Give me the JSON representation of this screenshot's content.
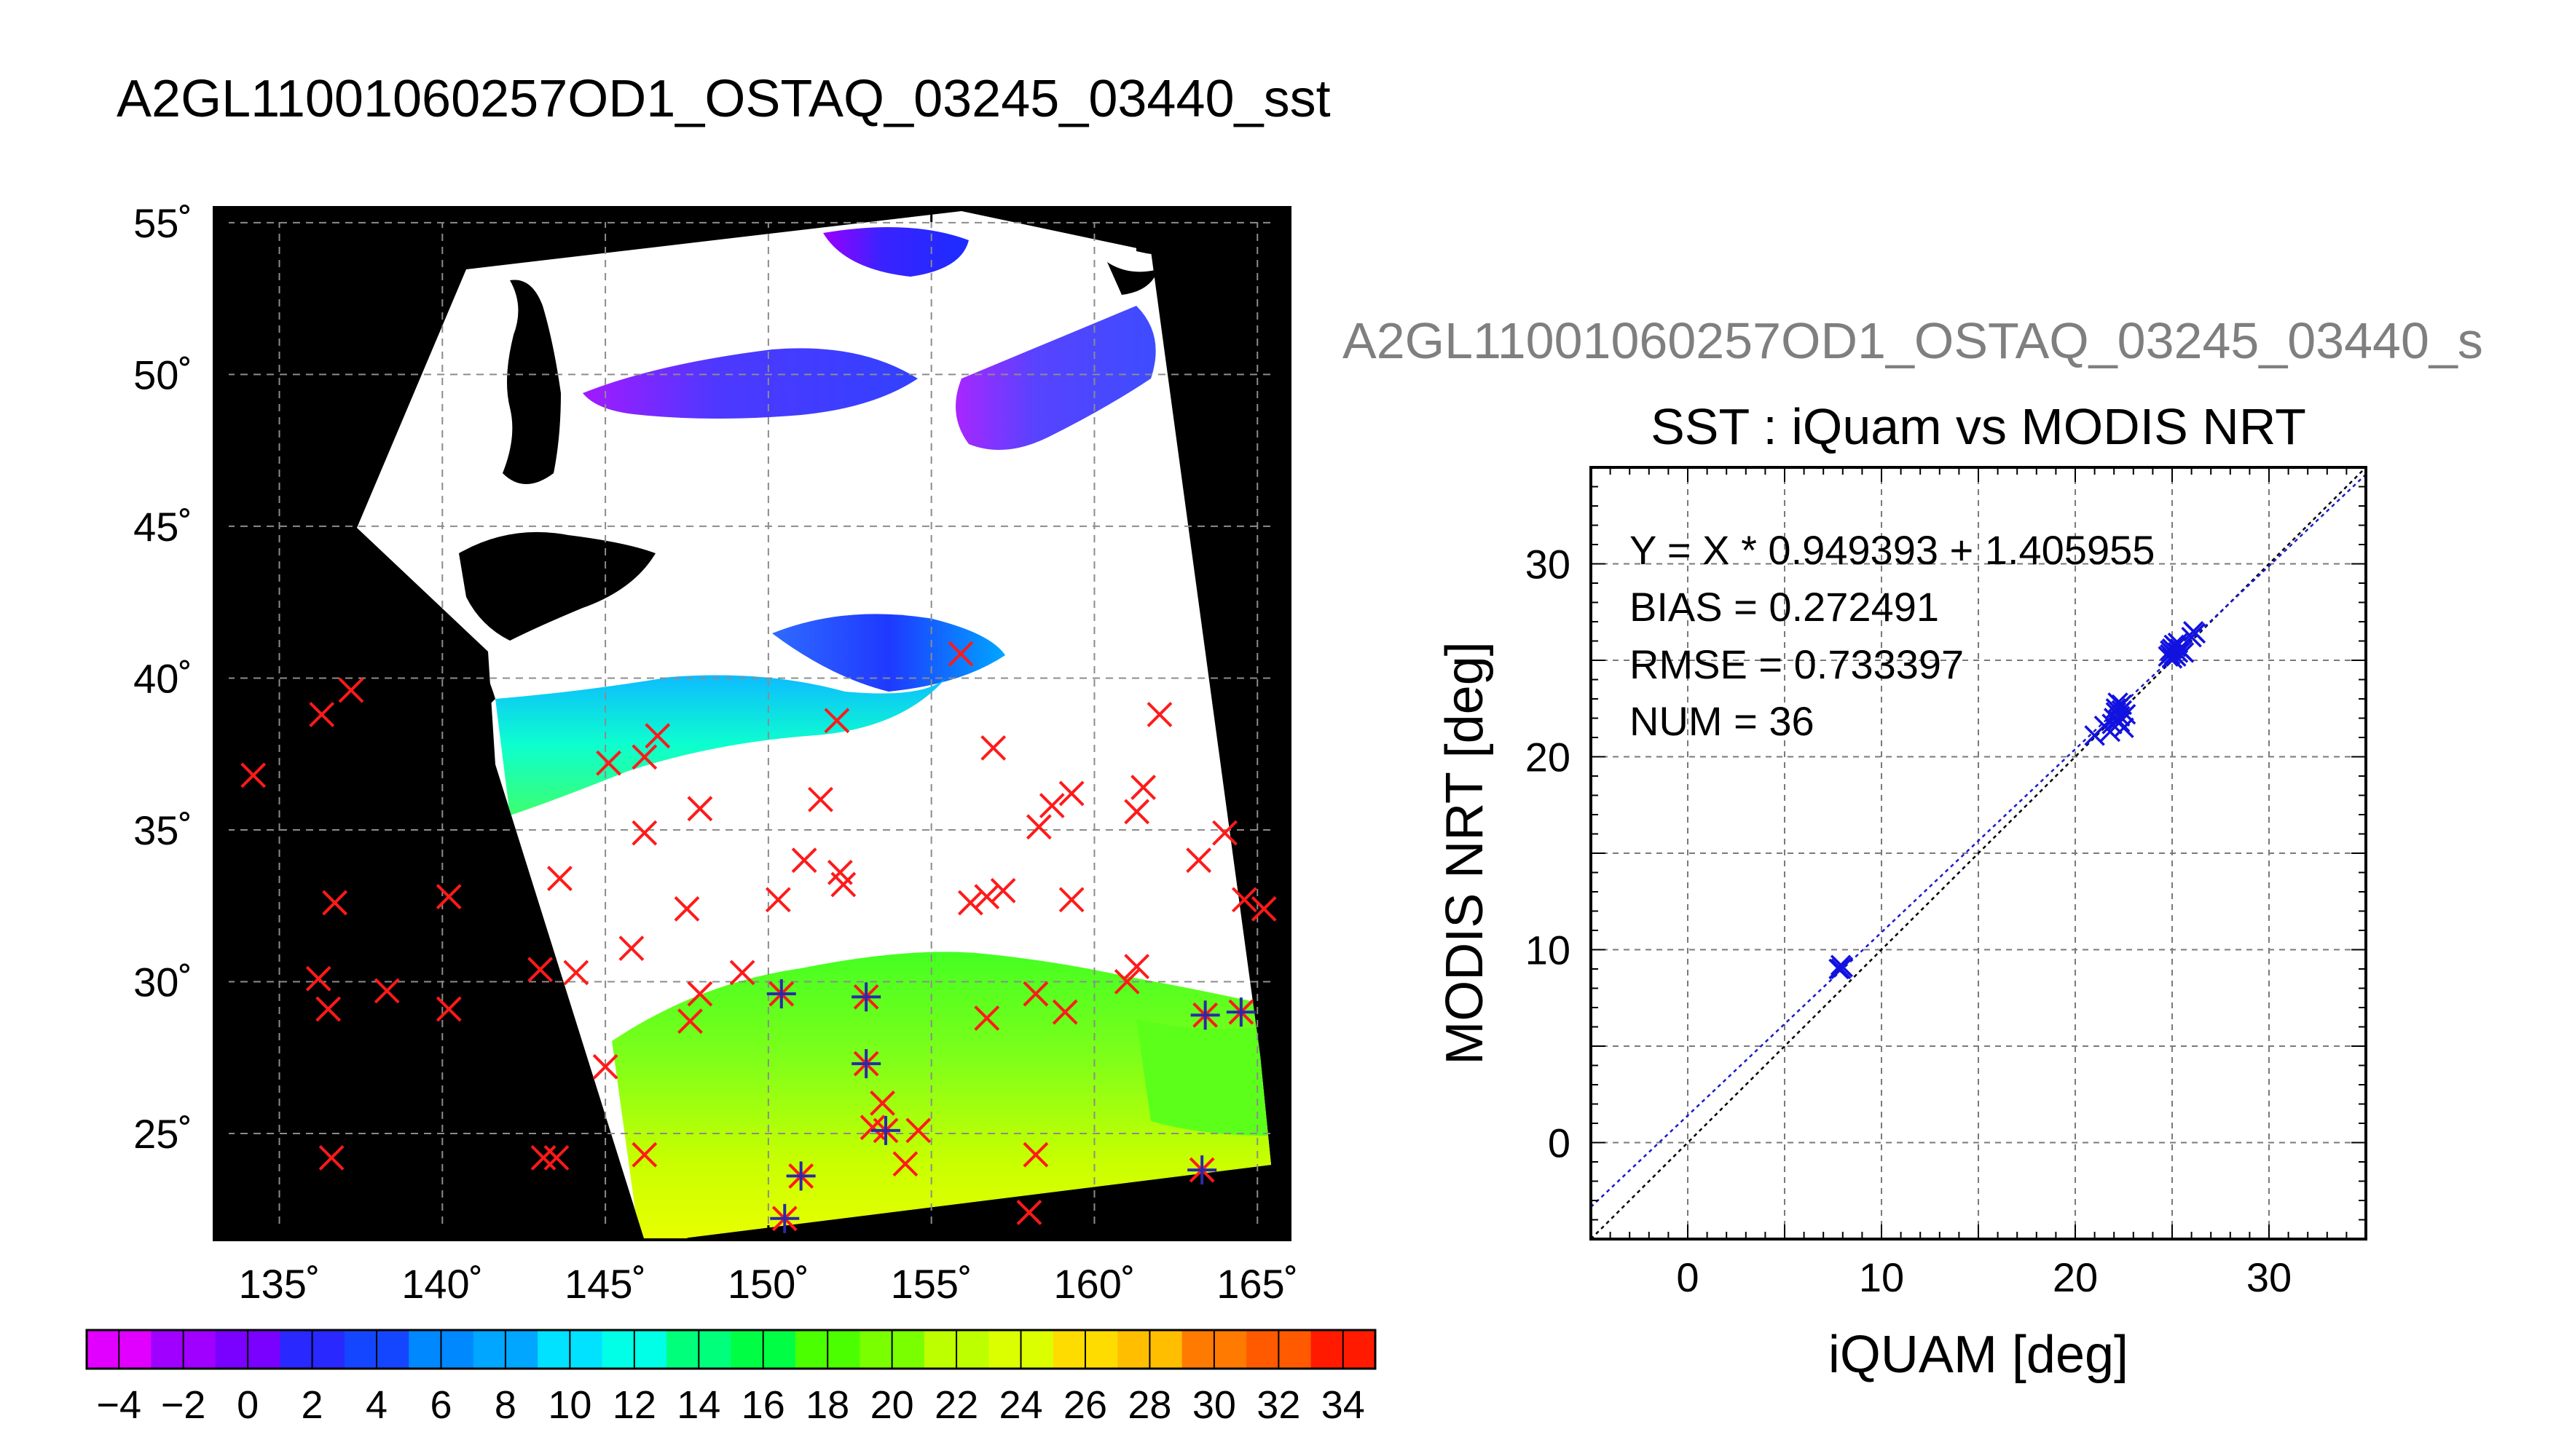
{
  "title": "A2GL11001060257OD1_OSTAQ_03245_03440_sst",
  "subtitle": "A2GL11001060257OD1_OSTAQ_03245_03440_s",
  "chart_data": [
    {
      "type": "map",
      "xlim": [
        133,
        166
      ],
      "ylim": [
        21.5,
        55.5
      ],
      "lon_ticks": [
        "135˚",
        "140˚",
        "145˚",
        "150˚",
        "155˚",
        "160˚",
        "165˚"
      ],
      "lat_ticks": [
        "25˚",
        "30˚",
        "35˚",
        "40˚",
        "45˚",
        "50˚",
        "55˚"
      ],
      "grid": true,
      "colorbar": {
        "range": [
          -5,
          35
        ],
        "tick_labels": [
          "−4",
          "−2",
          "0",
          "2",
          "4",
          "6",
          "8",
          "10",
          "12",
          "14",
          "16",
          "18",
          "20",
          "22",
          "24",
          "26",
          "28",
          "30",
          "32",
          "34"
        ]
      },
      "markers_red": [
        [
          134.2,
          36.8
        ],
        [
          136.3,
          38.8
        ],
        [
          137.2,
          39.6
        ],
        [
          136.7,
          32.6
        ],
        [
          136.2,
          30.1
        ],
        [
          136.5,
          29.1
        ],
        [
          138.3,
          29.7
        ],
        [
          140.2,
          32.8
        ],
        [
          140.2,
          29.1
        ],
        [
          136.6,
          24.2
        ],
        [
          143.0,
          30.4
        ],
        [
          144.1,
          30.3
        ],
        [
          143.6,
          33.4
        ],
        [
          145.0,
          27.2
        ],
        [
          143.1,
          24.2
        ],
        [
          143.5,
          24.2
        ],
        [
          146.2,
          24.3
        ],
        [
          146.2,
          34.9
        ],
        [
          146.2,
          37.4
        ],
        [
          146.6,
          38.1
        ],
        [
          145.1,
          37.2
        ],
        [
          145.8,
          31.1
        ],
        [
          147.6,
          28.7
        ],
        [
          147.9,
          29.6
        ],
        [
          147.9,
          35.7
        ],
        [
          147.5,
          32.4
        ],
        [
          149.2,
          30.3
        ],
        [
          150.3,
          32.7
        ],
        [
          151.1,
          34.0
        ],
        [
          151.6,
          36.0
        ],
        [
          152.2,
          33.6
        ],
        [
          152.3,
          33.2
        ],
        [
          152.1,
          38.6
        ],
        [
          153.5,
          26.0
        ],
        [
          153.2,
          25.2
        ],
        [
          154.2,
          24.0
        ],
        [
          154.6,
          25.1
        ],
        [
          155.9,
          40.8
        ],
        [
          156.2,
          32.6
        ],
        [
          156.7,
          32.8
        ],
        [
          157.2,
          33.0
        ],
        [
          156.7,
          28.8
        ],
        [
          156.9,
          37.7
        ],
        [
          158.2,
          29.6
        ],
        [
          158.2,
          24.3
        ],
        [
          158.0,
          22.4
        ],
        [
          158.3,
          35.1
        ],
        [
          158.7,
          35.8
        ],
        [
          159.3,
          36.2
        ],
        [
          159.3,
          32.7
        ],
        [
          159.1,
          29.0
        ],
        [
          161.0,
          30.0
        ],
        [
          161.3,
          35.6
        ],
        [
          161.5,
          36.4
        ],
        [
          161.3,
          30.5
        ],
        [
          162.0,
          38.8
        ],
        [
          163.2,
          34.0
        ],
        [
          164.0,
          34.9
        ],
        [
          164.6,
          32.7
        ],
        [
          165.2,
          32.4
        ],
        [
          164.5,
          29.0
        ],
        [
          163.4,
          28.9
        ],
        [
          163.3,
          23.8
        ],
        [
          153.0,
          27.3
        ],
        [
          153.0,
          29.5
        ],
        [
          150.4,
          29.6
        ],
        [
          150.5,
          22.2
        ],
        [
          151.0,
          23.6
        ],
        [
          153.6,
          25.1
        ]
      ],
      "markers_blue": [
        [
          150.4,
          29.6
        ],
        [
          150.5,
          22.2
        ],
        [
          151.0,
          23.6
        ],
        [
          153.0,
          27.3
        ],
        [
          153.0,
          29.5
        ],
        [
          153.6,
          25.1
        ],
        [
          163.4,
          28.9
        ],
        [
          163.3,
          23.8
        ],
        [
          164.5,
          29.0
        ]
      ]
    },
    {
      "type": "scatter",
      "title": "SST : iQuam vs MODIS NRT",
      "xlabel": "iQUAM [deg]",
      "ylabel": "MODIS NRT [deg]",
      "xlim": [
        -5,
        35
      ],
      "ylim": [
        -5,
        35
      ],
      "xticks": [
        0,
        10,
        20,
        30
      ],
      "yticks": [
        0,
        10,
        20,
        30
      ],
      "grid": true,
      "stats": [
        "Y = X * 0.949393 + 1.405955",
        "BIAS = 0.272491",
        "RMSE = 0.733397",
        "NUM = 36"
      ],
      "fit": {
        "slope": 0.949393,
        "intercept": 1.405955
      },
      "points": [
        [
          7.8,
          9.0
        ],
        [
          7.9,
          9.2
        ],
        [
          8.0,
          9.1
        ],
        [
          7.9,
          9.0
        ],
        [
          21.0,
          21.1
        ],
        [
          21.5,
          21.6
        ],
        [
          21.8,
          21.3
        ],
        [
          22.0,
          22.0
        ],
        [
          22.1,
          22.5
        ],
        [
          22.2,
          22.8
        ],
        [
          22.3,
          22.1
        ],
        [
          22.4,
          22.4
        ],
        [
          22.3,
          21.8
        ],
        [
          22.5,
          21.5
        ],
        [
          22.6,
          22.2
        ],
        [
          22.2,
          21.9
        ],
        [
          24.8,
          25.2
        ],
        [
          24.9,
          25.5
        ],
        [
          25.0,
          25.6
        ],
        [
          25.1,
          25.3
        ],
        [
          25.2,
          25.7
        ],
        [
          25.3,
          25.4
        ],
        [
          25.0,
          25.1
        ],
        [
          25.4,
          25.6
        ],
        [
          25.5,
          25.5
        ],
        [
          24.9,
          25.3
        ],
        [
          25.2,
          25.2
        ],
        [
          25.1,
          25.8
        ],
        [
          26.2,
          26.4
        ],
        [
          26.0,
          26.2
        ],
        [
          22.4,
          22.7
        ],
        [
          21.9,
          21.7
        ],
        [
          25.3,
          25.9
        ],
        [
          22.1,
          22.3
        ],
        [
          25.6,
          25.4
        ],
        [
          26.1,
          26.5
        ]
      ]
    }
  ]
}
